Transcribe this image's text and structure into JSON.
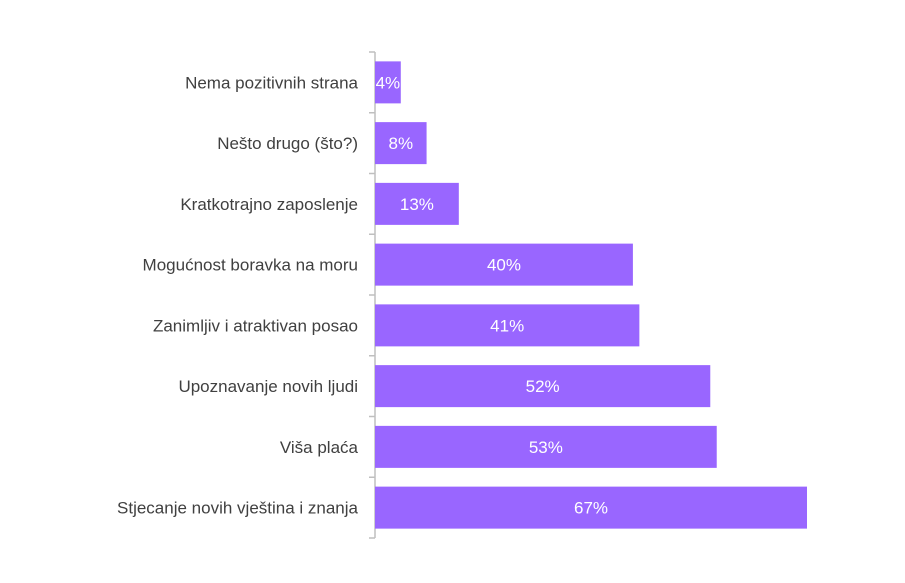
{
  "chart_data": {
    "type": "bar",
    "orientation": "horizontal",
    "categories": [
      "Nema pozitivnih strana",
      "Nešto drugo (što?)",
      "Kratkotrajno zaposlenje",
      "Mogućnost boravka na moru",
      "Zanimljiv i atraktivan posao",
      "Upoznavanje novih ljudi",
      "Viša plaća",
      "Stjecanje novih vještina i znanja"
    ],
    "values": [
      4,
      8,
      13,
      40,
      41,
      52,
      53,
      67
    ],
    "value_labels": [
      "4%",
      "8%",
      "13%",
      "40%",
      "41%",
      "52%",
      "53%",
      "67%"
    ],
    "xlim": [
      0,
      70
    ],
    "grid": false,
    "bar_color": "#9966ff",
    "axis_color": "#bfbfbf",
    "label_color": "#404040"
  }
}
